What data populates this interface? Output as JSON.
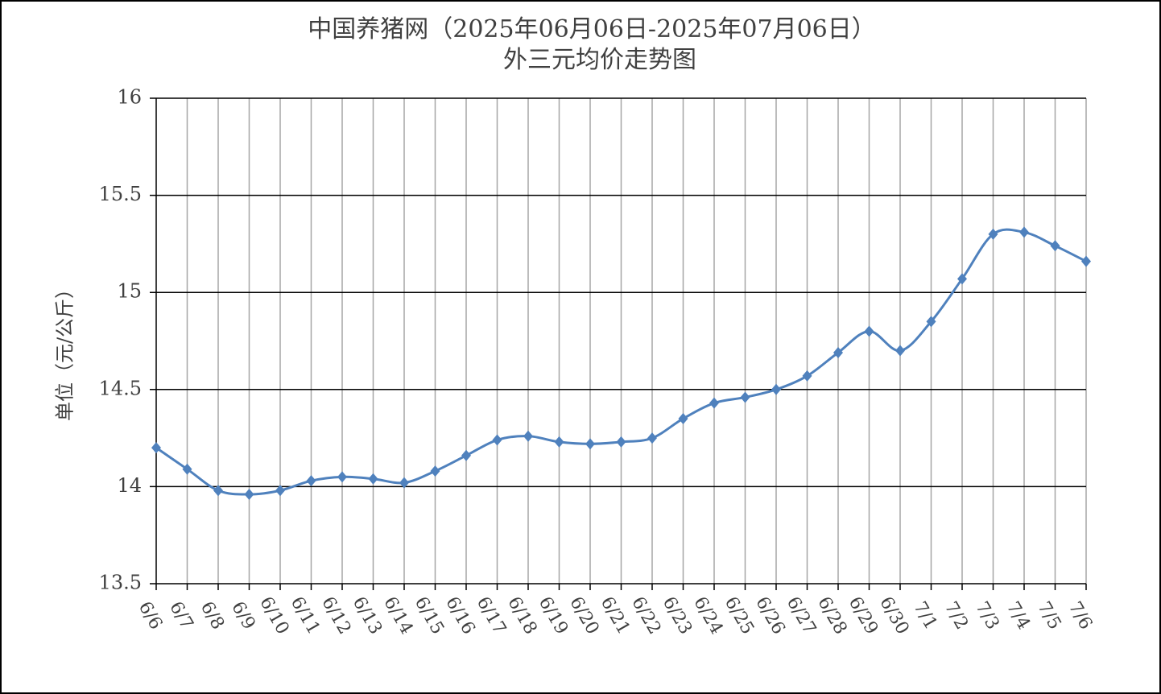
{
  "chart_data": {
    "type": "line",
    "title": "中国养猪网（2025年06月06日-2025年07月06日）",
    "subtitle": "外三元均价走势图",
    "y_label": "单位（元/公斤）",
    "categories": [
      "6/6",
      "6/7",
      "6/8",
      "6/9",
      "6/10",
      "6/11",
      "6/12",
      "6/13",
      "6/14",
      "6/15",
      "6/16",
      "6/17",
      "6/18",
      "6/19",
      "6/20",
      "6/21",
      "6/22",
      "6/23",
      "6/24",
      "6/25",
      "6/26",
      "6/27",
      "6/28",
      "6/29",
      "6/30",
      "7/1",
      "7/2",
      "7/3",
      "7/4",
      "7/5",
      "7/6"
    ],
    "values": [
      14.2,
      14.09,
      13.98,
      13.96,
      13.98,
      14.03,
      14.05,
      14.04,
      14.02,
      14.08,
      14.16,
      14.24,
      14.26,
      14.23,
      14.22,
      14.23,
      14.25,
      14.35,
      14.43,
      14.46,
      14.5,
      14.57,
      14.69,
      14.8,
      14.7,
      14.85,
      15.07,
      15.3,
      15.31,
      15.24,
      15.16
    ],
    "color": "#4f81bd",
    "ylim": [
      13.5,
      16
    ],
    "yticks": [
      13.5,
      14,
      14.5,
      15,
      15.5,
      16
    ],
    "grid": true,
    "smooth": true
  }
}
